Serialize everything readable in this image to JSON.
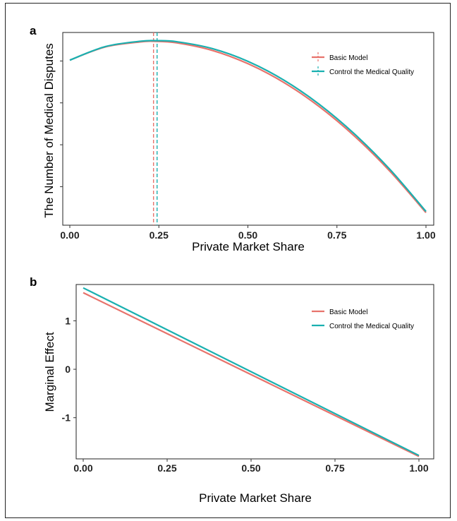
{
  "chart_data": [
    {
      "panel": "a",
      "type": "line",
      "xlabel": "Private Market Share",
      "ylabel": "The Number of Medical Disputes",
      "xlim": [
        0,
        1
      ],
      "ylim": [
        0.0,
        1.0
      ],
      "x_ticks": [
        "0.00",
        "0.25",
        "0.50",
        "0.75",
        "1.00"
      ],
      "y_ticks_labeled": false,
      "y_tick_values": [
        0.23,
        0.48,
        0.73,
        0.98
      ],
      "grid": false,
      "legend_position": "top-right",
      "series": [
        {
          "name": "Basic Model",
          "color": "#e8736c",
          "x": [
            0,
            0.1,
            0.2,
            0.235,
            0.3,
            0.4,
            0.5,
            0.6,
            0.7,
            0.8,
            0.9,
            1.0
          ],
          "y": [
            0.985,
            1.064,
            1.094,
            1.097,
            1.088,
            1.043,
            0.964,
            0.853,
            0.708,
            0.53,
            0.319,
            0.075
          ]
        },
        {
          "name": "Control the Medical Quality",
          "color": "#1ab0b0",
          "x": [
            0,
            0.1,
            0.2,
            0.245,
            0.3,
            0.4,
            0.5,
            0.6,
            0.7,
            0.8,
            0.9,
            1.0
          ],
          "y": [
            0.985,
            1.066,
            1.098,
            1.101,
            1.095,
            1.054,
            0.978,
            0.867,
            0.722,
            0.543,
            0.33,
            0.082
          ]
        }
      ],
      "vlines": [
        {
          "series": "Basic Model",
          "x": 0.235,
          "color": "#e8736c"
        },
        {
          "series": "Control the Medical Quality",
          "x": 0.245,
          "color": "#1ab0b0"
        }
      ]
    },
    {
      "panel": "b",
      "type": "line",
      "xlabel": "Private Market Share",
      "ylabel": "Marginal Effect",
      "xlim": [
        0,
        1
      ],
      "ylim": [
        -1.85,
        1.75
      ],
      "x_ticks": [
        "0.00",
        "0.25",
        "0.50",
        "0.75",
        "1.00"
      ],
      "y_ticks": [
        "1",
        "0",
        "-1"
      ],
      "y_tick_values": [
        1,
        0,
        -1
      ],
      "grid": false,
      "legend_position": "top-right",
      "series": [
        {
          "name": "Basic Model",
          "color": "#e8736c",
          "x": [
            0,
            1
          ],
          "y": [
            1.58,
            -1.8
          ]
        },
        {
          "name": "Control the Medical Quality",
          "color": "#1ab0b0",
          "x": [
            0,
            1
          ],
          "y": [
            1.68,
            -1.78
          ]
        }
      ]
    }
  ],
  "panels": {
    "a": {
      "label": "a"
    },
    "b": {
      "label": "b"
    }
  }
}
